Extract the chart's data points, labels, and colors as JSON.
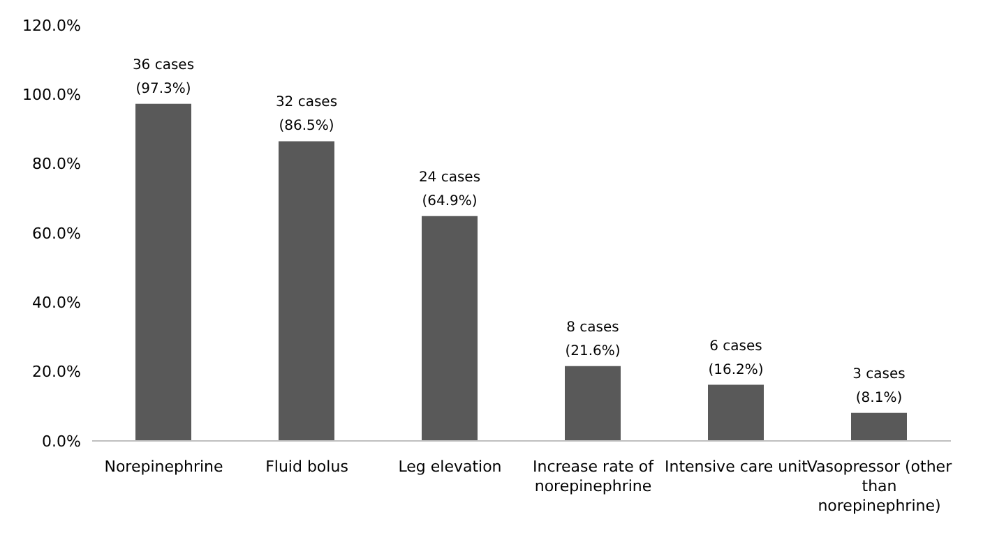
{
  "chart_data": {
    "type": "bar",
    "categories": [
      "Norepinephrine",
      "Fluid bolus",
      "Leg elevation",
      "Increase rate of norepinephrine",
      "Intensive care unit",
      "Vasopressor (other than norepinephrine)"
    ],
    "values": [
      97.3,
      86.5,
      64.9,
      21.6,
      16.2,
      8.1
    ],
    "value_labels": [
      "36 cases\n(97.3%)",
      "32 cases\n(86.5%)",
      "24 cases\n(64.9%)",
      "8 cases\n(21.6%)",
      "6 cases\n(16.2%)",
      "3 cases\n(8.1%)"
    ],
    "color": "#595959",
    "ylim": [
      0,
      120
    ],
    "yticks": [
      {
        "value": 0,
        "label": "0.0%"
      },
      {
        "value": 20,
        "label": "20.0%"
      },
      {
        "value": 40,
        "label": "40.0%"
      },
      {
        "value": 60,
        "label": "60.0%"
      },
      {
        "value": 80,
        "label": "80.0%"
      },
      {
        "value": 100,
        "label": "100.0%"
      },
      {
        "value": 120,
        "label": "120.0%"
      }
    ],
    "grid": false,
    "legend": false
  }
}
